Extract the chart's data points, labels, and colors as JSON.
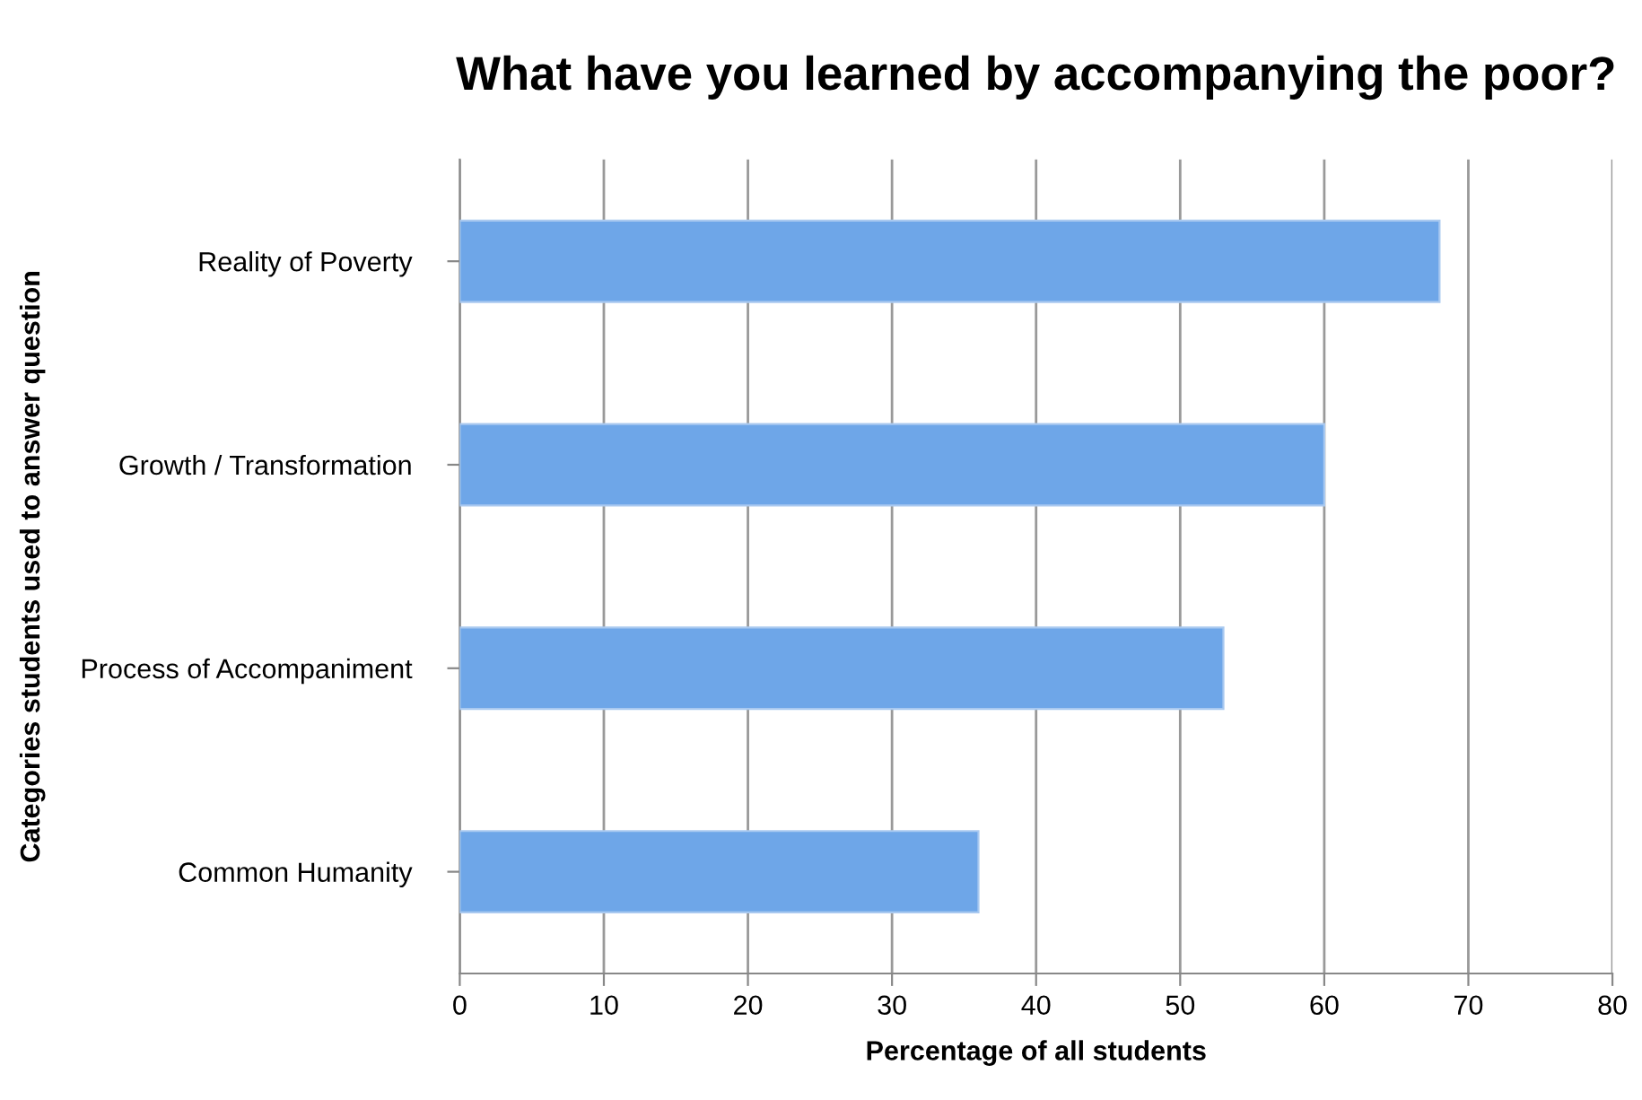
{
  "chart_data": {
    "type": "bar",
    "orientation": "horizontal",
    "title": "What have you learned by accompanying the poor?",
    "xlabel": "Percentage of all students",
    "ylabel": "Categories students used to answer question",
    "categories": [
      "Reality of Poverty",
      "Growth / Transformation",
      "Process of Accompaniment",
      "Common Humanity"
    ],
    "values": [
      68,
      60,
      53,
      36
    ],
    "color": "#6ea6e8",
    "xlim": [
      0,
      80
    ],
    "xticks": [
      0,
      10,
      20,
      30,
      40,
      50,
      60,
      70,
      80
    ],
    "grid": "x"
  }
}
